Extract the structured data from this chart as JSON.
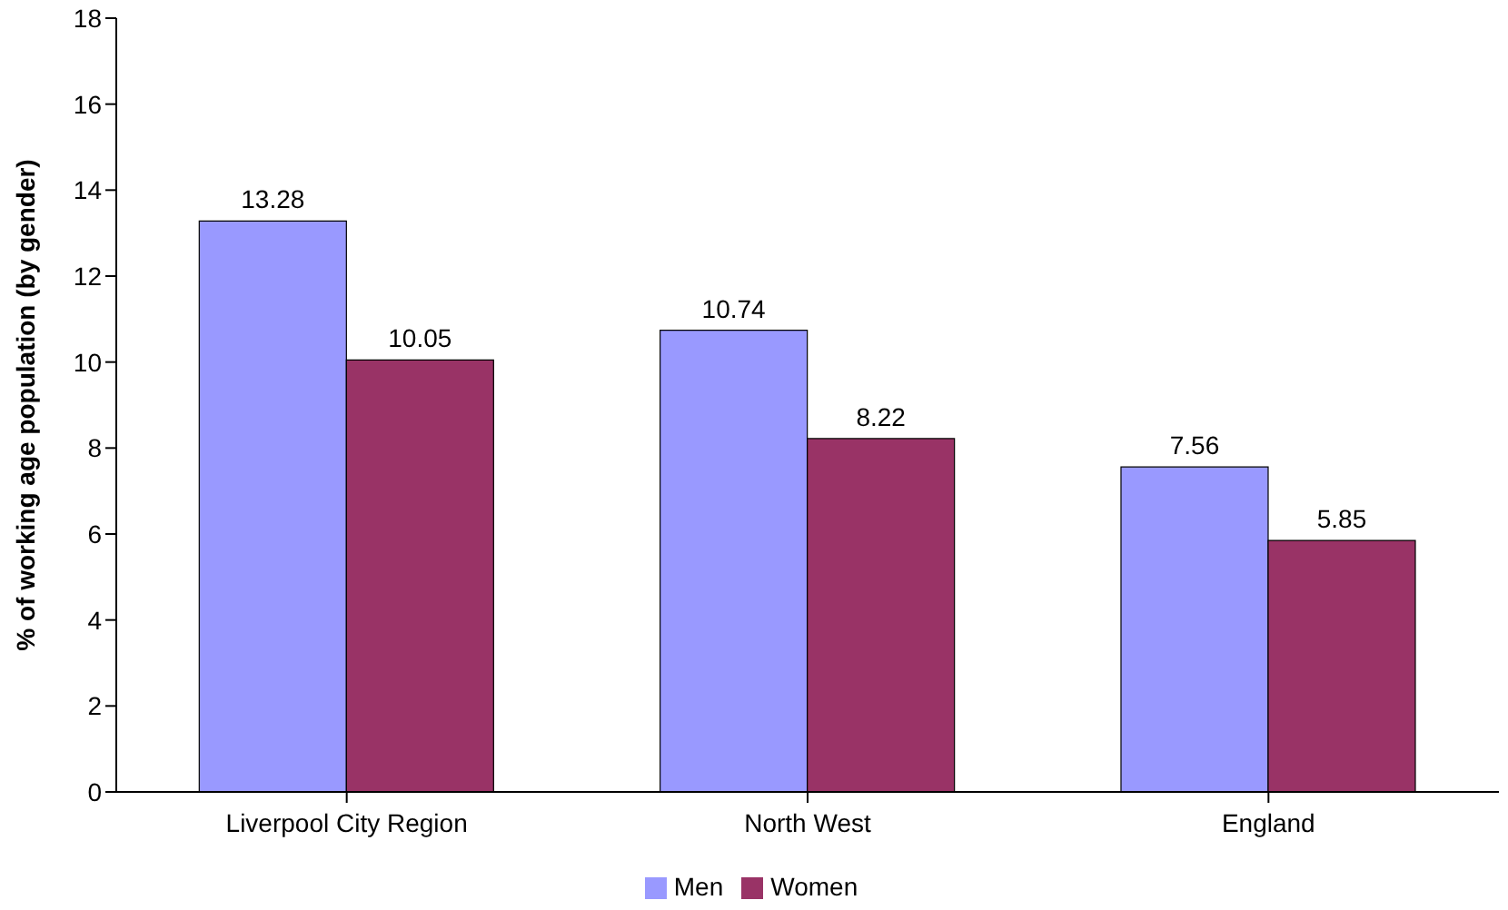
{
  "chart_data": {
    "type": "bar",
    "ylabel": "% of working age population (by gender)",
    "categories": [
      "Liverpool City Region",
      "North West",
      "England"
    ],
    "series": [
      {
        "name": "Men",
        "color": "#9999ff",
        "values": [
          13.28,
          10.74,
          7.56
        ]
      },
      {
        "name": "Women",
        "color": "#993366",
        "values": [
          10.05,
          8.22,
          5.85
        ]
      }
    ],
    "ylim": [
      0,
      18
    ],
    "yticks": [
      0,
      2,
      4,
      6,
      8,
      10,
      12,
      14,
      16,
      18
    ],
    "grid": false,
    "legend": "bottom",
    "data_labels": true
  }
}
